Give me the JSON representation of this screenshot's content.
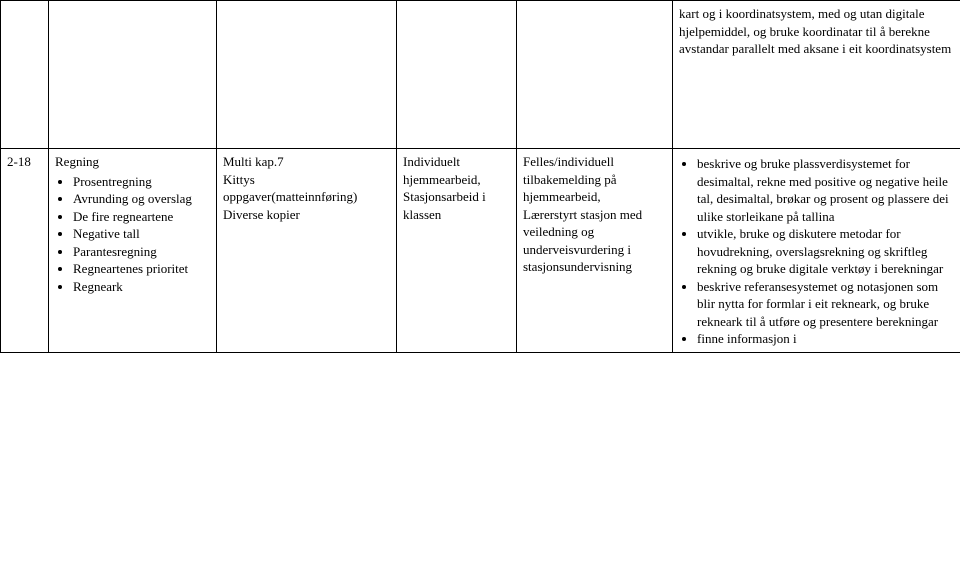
{
  "table": {
    "row0": {
      "col5": {
        "text": "kart og i koordinatsystem, med og utan digitale hjelpemiddel, og bruke koordinatar til å berekne avstandar parallelt med aksane i eit koordinatsystem"
      }
    },
    "row1": {
      "col0": "2-18",
      "col1": {
        "heading": "Regning",
        "items": [
          "Prosentregning",
          "Avrunding og overslag",
          "De fire regneartene",
          "Negative tall",
          "Parantesregning",
          "Regneartenes prioritet",
          "Regneark"
        ]
      },
      "col2": {
        "lines": [
          "Multi kap.7",
          "Kittys oppgaver(matteinnføring)",
          "Diverse kopier"
        ]
      },
      "col3": {
        "lines": [
          "Individuelt hjemmearbeid,",
          "Stasjonsarbeid i klassen"
        ]
      },
      "col4": {
        "lines": [
          "Felles/individuell tilbakemelding på hjemmearbeid,",
          "Lærerstyrt stasjon med veiledning og underveisvurdering i stasjonsundervisning"
        ]
      },
      "col5": {
        "items": [
          "beskrive og bruke plassverdisystemet for desimaltal, rekne med positive og negative heile tal, desimaltal, brøkar og prosent og plassere dei ulike storleikane på tallina",
          "utvikle, bruke og diskutere metodar for hovudrekning, overslagsrekning og skriftleg rekning og bruke digitale verktøy i berekningar",
          "beskrive referansesystemet og notasjonen som blir nytta for formlar i eit rekneark, og bruke rekneark til å utføre og presentere berekningar",
          "finne informasjon i"
        ]
      }
    }
  }
}
